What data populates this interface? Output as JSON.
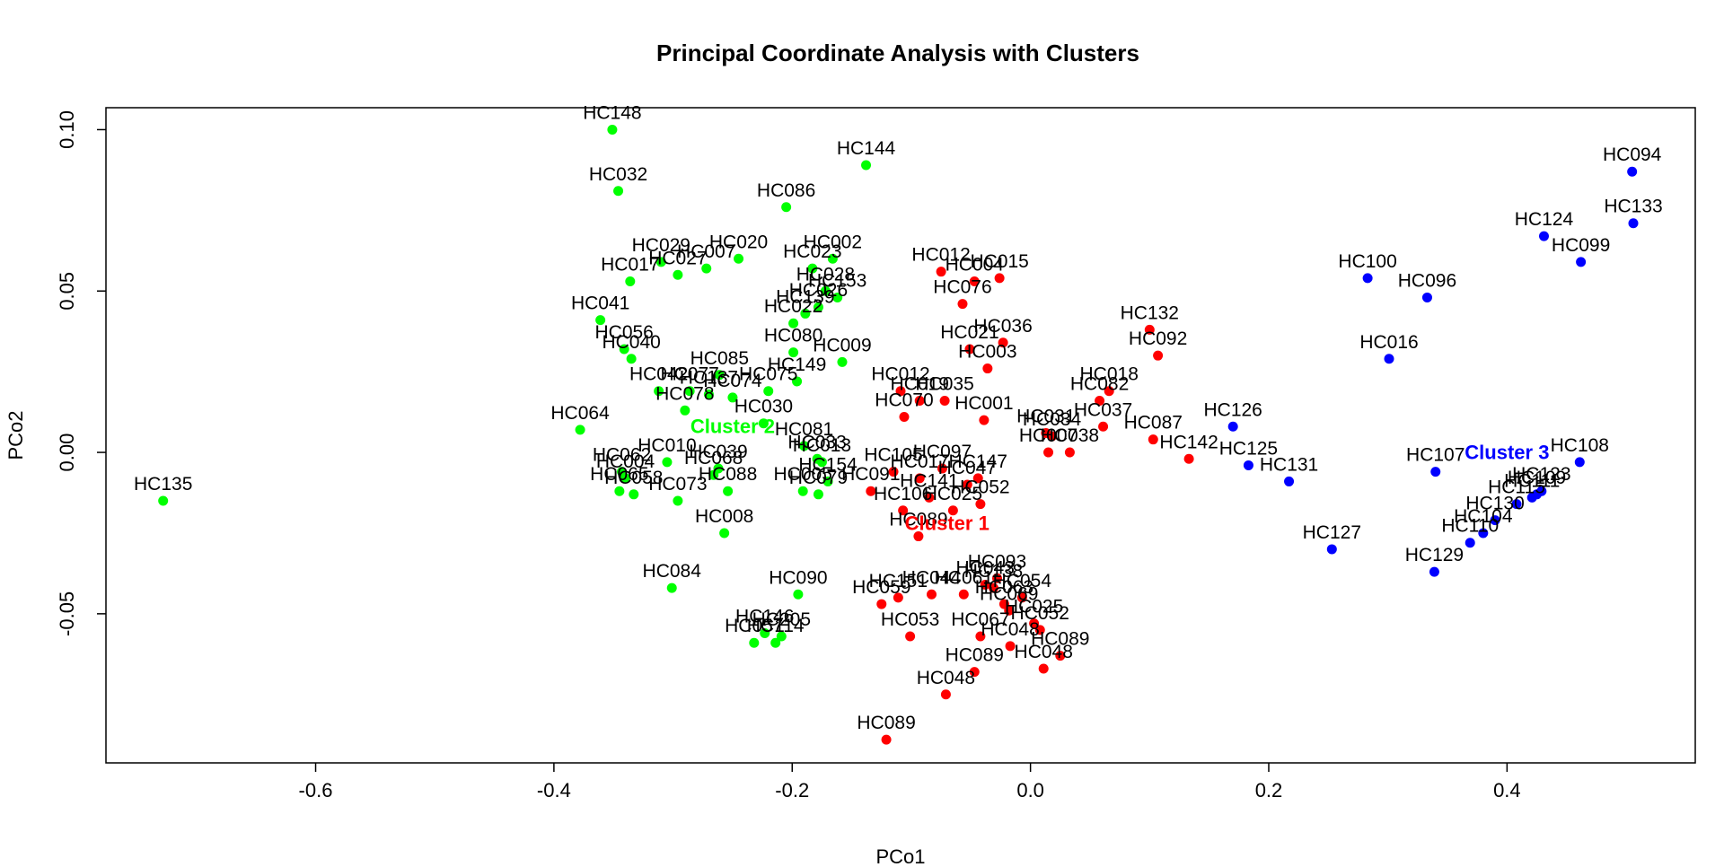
{
  "chart_data": {
    "type": "scatter",
    "title": "Principal Coordinate Analysis with Clusters",
    "xlabel": "PCo1",
    "ylabel": "PCo2",
    "xlim": [
      -0.776,
      0.558
    ],
    "ylim": [
      -0.0962,
      0.1068
    ],
    "xticks": [
      -0.6,
      -0.4,
      -0.2,
      0.0,
      0.2,
      0.4
    ],
    "xtick_labels": [
      "-0.6",
      "-0.4",
      "-0.2",
      "0.0",
      "0.2",
      "0.4"
    ],
    "yticks": [
      -0.05,
      0.0,
      0.05,
      0.1
    ],
    "ytick_labels": [
      "-0.05",
      "0.00",
      "0.05",
      "0.10"
    ],
    "grid": false,
    "series": [
      {
        "name": "Cluster 1",
        "color": "#ff0000",
        "label_x": -0.07,
        "label_y": -0.024,
        "points": [
          {
            "label": "HC012",
            "x": -0.075,
            "y": 0.056
          },
          {
            "label": "HC004",
            "x": -0.047,
            "y": 0.053
          },
          {
            "label": "HC015",
            "x": -0.026,
            "y": 0.054
          },
          {
            "label": "HC076",
            "x": -0.057,
            "y": 0.046
          },
          {
            "label": "HC036",
            "x": -0.023,
            "y": 0.034
          },
          {
            "label": "HC021",
            "x": -0.051,
            "y": 0.032
          },
          {
            "label": "HC003",
            "x": -0.036,
            "y": 0.026
          },
          {
            "label": "HC132",
            "x": 0.1,
            "y": 0.038
          },
          {
            "label": "HC092",
            "x": 0.107,
            "y": 0.03
          },
          {
            "label": "HC012",
            "x": -0.109,
            "y": 0.019
          },
          {
            "label": "HC035",
            "x": -0.072,
            "y": 0.016
          },
          {
            "label": "HC018",
            "x": 0.066,
            "y": 0.019
          },
          {
            "label": "HC082",
            "x": 0.058,
            "y": 0.016
          },
          {
            "label": "HC019",
            "x": -0.093,
            "y": 0.016
          },
          {
            "label": "HC001",
            "x": -0.039,
            "y": 0.01
          },
          {
            "label": "HC070",
            "x": -0.106,
            "y": 0.011
          },
          {
            "label": "HC031",
            "x": 0.013,
            "y": 0.006
          },
          {
            "label": "HC037",
            "x": 0.061,
            "y": 0.008
          },
          {
            "label": "HC087",
            "x": 0.103,
            "y": 0.004
          },
          {
            "label": "HC034",
            "x": 0.018,
            "y": 0.005
          },
          {
            "label": "HC038",
            "x": 0.033,
            "y": 0.0
          },
          {
            "label": "HC007",
            "x": 0.015,
            "y": 0.0
          },
          {
            "label": "HC142",
            "x": 0.133,
            "y": -0.002
          },
          {
            "label": "HC097",
            "x": -0.074,
            "y": -0.005
          },
          {
            "label": "HC105",
            "x": -0.115,
            "y": -0.006
          },
          {
            "label": "HC017",
            "x": -0.093,
            "y": -0.008
          },
          {
            "label": "HC147",
            "x": -0.044,
            "y": -0.008
          },
          {
            "label": "HC091",
            "x": -0.134,
            "y": -0.012
          },
          {
            "label": "HC141",
            "x": -0.085,
            "y": -0.014
          },
          {
            "label": "HC047",
            "x": -0.053,
            "y": -0.01
          },
          {
            "label": "HC106",
            "x": -0.107,
            "y": -0.018
          },
          {
            "label": "HC025",
            "x": -0.065,
            "y": -0.018
          },
          {
            "label": "HC052",
            "x": -0.042,
            "y": -0.016
          },
          {
            "label": "HC089",
            "x": -0.094,
            "y": -0.026
          },
          {
            "label": "HC043",
            "x": -0.038,
            "y": -0.041
          },
          {
            "label": "HC044",
            "x": -0.083,
            "y": -0.044
          },
          {
            "label": "HC061",
            "x": -0.056,
            "y": -0.044
          },
          {
            "label": "HC093",
            "x": -0.028,
            "y": -0.039
          },
          {
            "label": "HC138",
            "x": -0.031,
            "y": -0.042
          },
          {
            "label": "HC063",
            "x": -0.022,
            "y": -0.047
          },
          {
            "label": "HC151",
            "x": -0.111,
            "y": -0.045
          },
          {
            "label": "HC054",
            "x": -0.007,
            "y": -0.045
          },
          {
            "label": "HC059",
            "x": -0.125,
            "y": -0.047
          },
          {
            "label": "HC069",
            "x": -0.018,
            "y": -0.049
          },
          {
            "label": "HC053",
            "x": -0.101,
            "y": -0.057
          },
          {
            "label": "HC067",
            "x": -0.042,
            "y": -0.057
          },
          {
            "label": "HC025",
            "x": 0.003,
            "y": -0.053
          },
          {
            "label": "HC052",
            "x": 0.008,
            "y": -0.055
          },
          {
            "label": "HC048",
            "x": -0.017,
            "y": -0.06
          },
          {
            "label": "HC089",
            "x": 0.025,
            "y": -0.063
          },
          {
            "label": "HC048",
            "x": 0.011,
            "y": -0.067
          },
          {
            "label": "HC089",
            "x": -0.047,
            "y": -0.068
          },
          {
            "label": "HC048",
            "x": -0.071,
            "y": -0.075
          },
          {
            "label": "HC089",
            "x": -0.121,
            "y": -0.089
          }
        ]
      },
      {
        "name": "Cluster 2",
        "color": "#00ff00",
        "label_x": -0.25,
        "label_y": 0.006,
        "points": [
          {
            "label": "HC148",
            "x": -0.351,
            "y": 0.1
          },
          {
            "label": "HC144",
            "x": -0.138,
            "y": 0.089
          },
          {
            "label": "HC032",
            "x": -0.346,
            "y": 0.081
          },
          {
            "label": "HC086",
            "x": -0.205,
            "y": 0.076
          },
          {
            "label": "HC029",
            "x": -0.31,
            "y": 0.059
          },
          {
            "label": "HC027",
            "x": -0.296,
            "y": 0.055
          },
          {
            "label": "HC007",
            "x": -0.272,
            "y": 0.057
          },
          {
            "label": "HC020",
            "x": -0.245,
            "y": 0.06
          },
          {
            "label": "HC002",
            "x": -0.166,
            "y": 0.06
          },
          {
            "label": "HC023",
            "x": -0.183,
            "y": 0.057
          },
          {
            "label": "HC017",
            "x": -0.336,
            "y": 0.053
          },
          {
            "label": "HC153",
            "x": -0.162,
            "y": 0.048
          },
          {
            "label": "HC028",
            "x": -0.172,
            "y": 0.05
          },
          {
            "label": "HC026",
            "x": -0.178,
            "y": 0.045
          },
          {
            "label": "HC139",
            "x": -0.189,
            "y": 0.043
          },
          {
            "label": "HC022",
            "x": -0.199,
            "y": 0.04
          },
          {
            "label": "HC041",
            "x": -0.361,
            "y": 0.041
          },
          {
            "label": "HC080",
            "x": -0.199,
            "y": 0.031
          },
          {
            "label": "HC056",
            "x": -0.341,
            "y": 0.032
          },
          {
            "label": "HC040",
            "x": -0.335,
            "y": 0.029
          },
          {
            "label": "HC009",
            "x": -0.158,
            "y": 0.028
          },
          {
            "label": "HC085",
            "x": -0.261,
            "y": 0.024
          },
          {
            "label": "HC149",
            "x": -0.196,
            "y": 0.022
          },
          {
            "label": "HC042",
            "x": -0.312,
            "y": 0.019
          },
          {
            "label": "HC077",
            "x": -0.286,
            "y": 0.019
          },
          {
            "label": "HC075",
            "x": -0.22,
            "y": 0.019
          },
          {
            "label": "HC137",
            "x": -0.27,
            "y": 0.018
          },
          {
            "label": "HC074",
            "x": -0.25,
            "y": 0.017
          },
          {
            "label": "HC030",
            "x": -0.224,
            "y": 0.009
          },
          {
            "label": "HC078",
            "x": -0.29,
            "y": 0.013
          },
          {
            "label": "HC064",
            "x": -0.378,
            "y": 0.007
          },
          {
            "label": "HC081",
            "x": -0.19,
            "y": 0.002
          },
          {
            "label": "HC033",
            "x": -0.179,
            "y": -0.002
          },
          {
            "label": "HC010",
            "x": -0.305,
            "y": -0.003
          },
          {
            "label": "HC062",
            "x": -0.343,
            "y": -0.006
          },
          {
            "label": "HC039",
            "x": -0.262,
            "y": -0.005
          },
          {
            "label": "HC068",
            "x": -0.266,
            "y": -0.007
          },
          {
            "label": "HC013",
            "x": -0.175,
            "y": -0.003
          },
          {
            "label": "HC004",
            "x": -0.34,
            "y": -0.008
          },
          {
            "label": "HC088",
            "x": -0.254,
            "y": -0.012
          },
          {
            "label": "HC154",
            "x": -0.17,
            "y": -0.009
          },
          {
            "label": "HC005",
            "x": -0.191,
            "y": -0.012
          },
          {
            "label": "HC079",
            "x": -0.178,
            "y": -0.013
          },
          {
            "label": "HC065",
            "x": -0.345,
            "y": -0.012
          },
          {
            "label": "HC058",
            "x": -0.333,
            "y": -0.013
          },
          {
            "label": "HC073",
            "x": -0.296,
            "y": -0.015
          },
          {
            "label": "HC135",
            "x": -0.728,
            "y": -0.015
          },
          {
            "label": "HC008",
            "x": -0.257,
            "y": -0.025
          },
          {
            "label": "HC084",
            "x": -0.301,
            "y": -0.042
          },
          {
            "label": "HC090",
            "x": -0.195,
            "y": -0.044
          },
          {
            "label": "HC146",
            "x": -0.223,
            "y": -0.056
          },
          {
            "label": "HC205",
            "x": -0.209,
            "y": -0.057
          },
          {
            "label": "HC057",
            "x": -0.232,
            "y": -0.059
          },
          {
            "label": "HC114",
            "x": -0.214,
            "y": -0.059
          }
        ]
      },
      {
        "name": "Cluster 3",
        "color": "#0000ff",
        "label_x": 0.4,
        "label_y": -0.002,
        "points": [
          {
            "label": "HC094",
            "x": 0.505,
            "y": 0.087
          },
          {
            "label": "HC133",
            "x": 0.506,
            "y": 0.071
          },
          {
            "label": "HC124",
            "x": 0.431,
            "y": 0.067
          },
          {
            "label": "HC099",
            "x": 0.462,
            "y": 0.059
          },
          {
            "label": "HC100",
            "x": 0.283,
            "y": 0.054
          },
          {
            "label": "HC096",
            "x": 0.333,
            "y": 0.048
          },
          {
            "label": "HC016",
            "x": 0.301,
            "y": 0.029
          },
          {
            "label": "HC126",
            "x": 0.17,
            "y": 0.008
          },
          {
            "label": "HC125",
            "x": 0.183,
            "y": -0.004
          },
          {
            "label": "HC131",
            "x": 0.217,
            "y": -0.009
          },
          {
            "label": "HC107",
            "x": 0.34,
            "y": -0.006
          },
          {
            "label": "HC108",
            "x": 0.461,
            "y": -0.003
          },
          {
            "label": "HC123",
            "x": 0.429,
            "y": -0.012
          },
          {
            "label": "HC109",
            "x": 0.425,
            "y": -0.013
          },
          {
            "label": "HC111",
            "x": 0.421,
            "y": -0.014
          },
          {
            "label": "HC115",
            "x": 0.408,
            "y": -0.016
          },
          {
            "label": "HC130",
            "x": 0.39,
            "y": -0.021
          },
          {
            "label": "HC104",
            "x": 0.38,
            "y": -0.025
          },
          {
            "label": "HC127",
            "x": 0.253,
            "y": -0.03
          },
          {
            "label": "HC129",
            "x": 0.339,
            "y": -0.037
          },
          {
            "label": "HC110",
            "x": 0.369,
            "y": -0.028
          }
        ]
      }
    ]
  }
}
